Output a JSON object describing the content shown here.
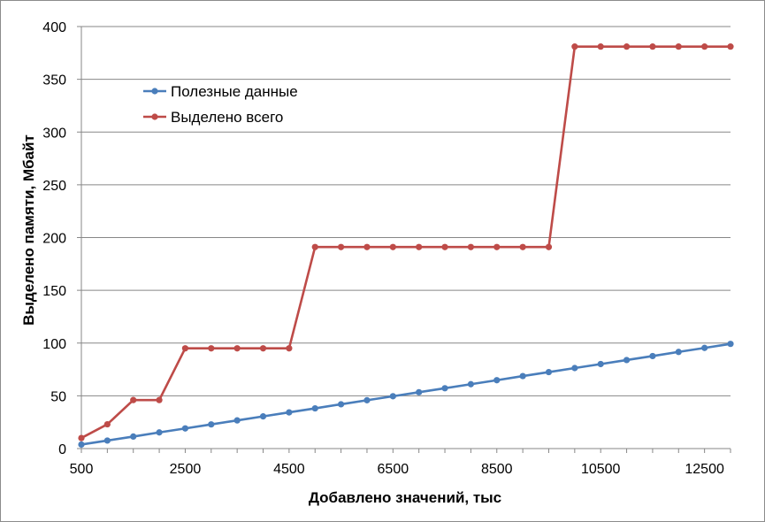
{
  "chart_data": {
    "type": "line",
    "xlabel": "Добавлено значений, тыс",
    "ylabel": "Выделено памяти, Мбайт",
    "xlim": [
      500,
      13000
    ],
    "ylim": [
      0,
      400
    ],
    "x": [
      500,
      1000,
      1500,
      2000,
      2500,
      3000,
      3500,
      4000,
      4500,
      5000,
      5500,
      6000,
      6500,
      7000,
      7500,
      8000,
      8500,
      9000,
      9500,
      10000,
      10500,
      11000,
      11500,
      12000,
      12500,
      13000
    ],
    "x_ticks": [
      "500",
      "2500",
      "4500",
      "6500",
      "8500",
      "10500",
      "12500"
    ],
    "x_tick_values": [
      500,
      2500,
      4500,
      6500,
      8500,
      10500,
      12500
    ],
    "y_ticks": [
      "0",
      "50",
      "100",
      "150",
      "200",
      "250",
      "300",
      "350",
      "400"
    ],
    "y_tick_values": [
      0,
      50,
      100,
      150,
      200,
      250,
      300,
      350,
      400
    ],
    "grid": "horizontal",
    "legend_position": "top-left",
    "series": [
      {
        "name": "Полезные данные",
        "color": "#4A7EBB",
        "values": [
          3.8,
          7.6,
          11.4,
          15.3,
          19.1,
          22.9,
          26.7,
          30.5,
          34.3,
          38.1,
          42.0,
          45.8,
          49.6,
          53.4,
          57.2,
          61.0,
          64.8,
          68.7,
          72.5,
          76.3,
          80.1,
          83.9,
          87.7,
          91.6,
          95.4,
          99.2
        ]
      },
      {
        "name": "Выделено всего",
        "color": "#BE4B48",
        "values": [
          10,
          23,
          46,
          46,
          95,
          95,
          95,
          95,
          95,
          191,
          191,
          191,
          191,
          191,
          191,
          191,
          191,
          191,
          191,
          381,
          381,
          381,
          381,
          381,
          381,
          381
        ]
      }
    ]
  }
}
